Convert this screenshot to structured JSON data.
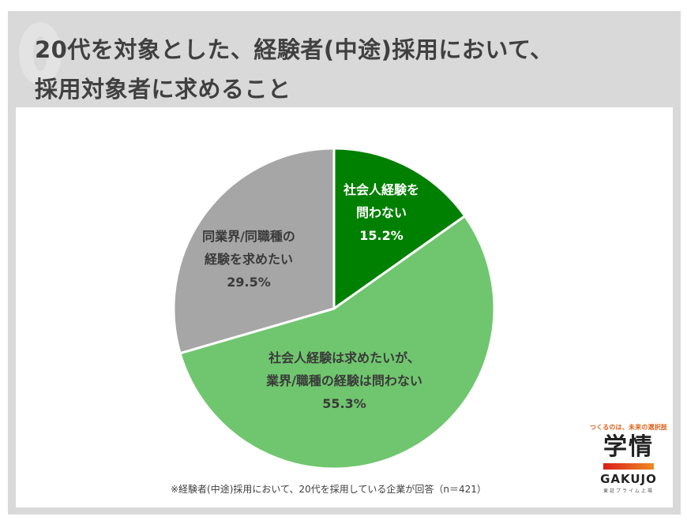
{
  "header": {
    "title_line1": "20代を対象とした、経験者(中途)採用において、",
    "title_line2": "採用対象者に求めること",
    "watermark_icon": "q-letter-watermark"
  },
  "chart_data": {
    "type": "pie",
    "title": "20代を対象とした、経験者(中途)採用において、採用対象者に求めること",
    "start_angle": "top (12 o'clock), clockwise",
    "categories": [
      "社会人経験を問わない",
      "社会人経験は求めたいが、業界/職種の経験は問わない",
      "同業界/同職種の経験を求めたい"
    ],
    "values": [
      15.2,
      55.3,
      29.5
    ],
    "unit": "%",
    "colors": [
      "#008000",
      "#70c66e",
      "#a6a6a6"
    ],
    "data_labels": [
      {
        "lines": [
          "社会人経験を",
          "問わない"
        ],
        "value": "15.2%",
        "text_color": "#ffffff"
      },
      {
        "lines": [
          "社会人経験は求めたいが、",
          "業界/職種の経験は問わない"
        ],
        "value": "55.3%",
        "text_color": "#3a3a3a"
      },
      {
        "lines": [
          "同業界/同職種の",
          "経験を求めたい"
        ],
        "value": "29.5%",
        "text_color": "#3a3a3a"
      }
    ],
    "legend": "none (labels inside slices)",
    "footnote": "※経験者(中途)採用において、20代を採用している企業が回答（n＝421）",
    "n": 421
  },
  "footnote": "※経験者(中途)採用において、20代を採用している企業が回答（n＝421）",
  "logo": {
    "tagline": "つくるのは、未来の選択肢",
    "kanji": "学情",
    "english": "GAKUJO",
    "subtitle": "東証プライム上場",
    "bar_gradient": [
      "#d81e1a",
      "#f08a24"
    ]
  },
  "colors": {
    "frame_gray": "#d9d9d9",
    "title_text": "#404040",
    "slice_dark_green": "#008000",
    "slice_light_green": "#70c66e",
    "slice_gray": "#a6a6a6"
  }
}
